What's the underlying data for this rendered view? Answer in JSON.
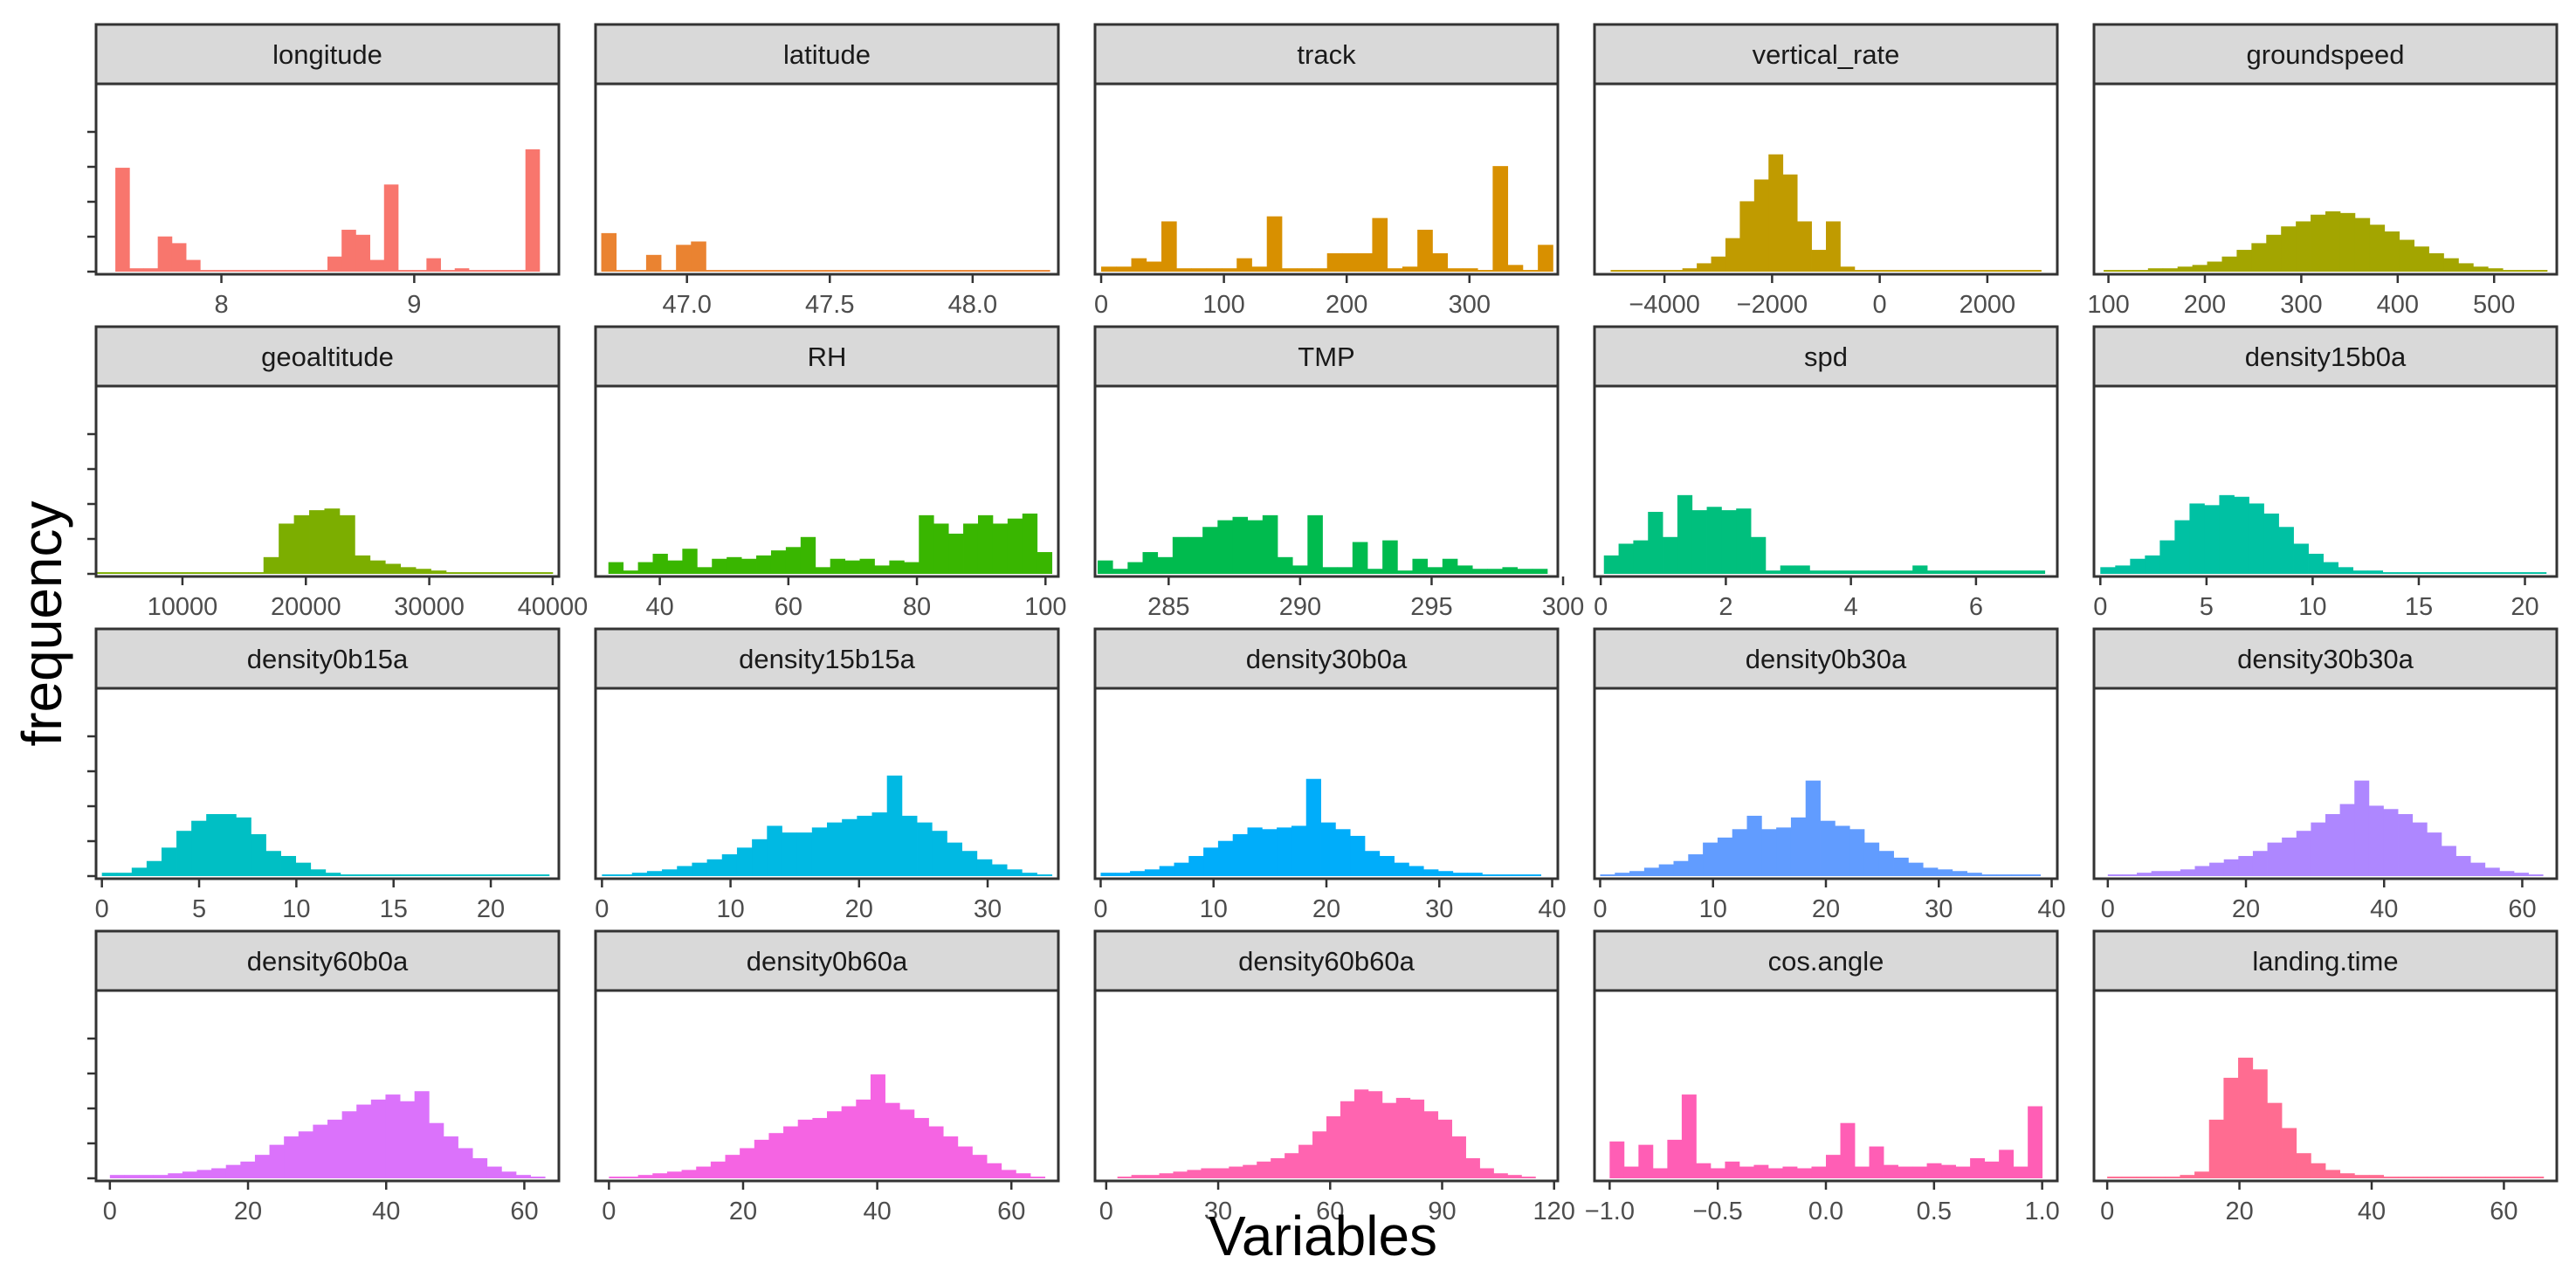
{
  "chart_data": {
    "type": "bar",
    "title": "",
    "xlabel": "Variables",
    "ylabel": "frequency",
    "grid": false,
    "legend": "none",
    "bins": 30,
    "panels": [
      {
        "name": "longitude",
        "color": "#F8766D",
        "xlim": [
          7.35,
          9.75
        ],
        "ticks": [
          8,
          9
        ],
        "tick_labels": [
          "8",
          "9"
        ],
        "bar_range": [
          7.45,
          9.65
        ],
        "values": [
          0.62,
          0.02,
          0.02,
          0.21,
          0.17,
          0.07,
          0.01,
          0.01,
          0.01,
          0.01,
          0.01,
          0.01,
          0.01,
          0.01,
          0.01,
          0.09,
          0.25,
          0.22,
          0.07,
          0.52,
          0.01,
          0.01,
          0.08,
          0.01,
          0.02,
          0.01,
          0.01,
          0.01,
          0.01,
          0.73
        ]
      },
      {
        "name": "latitude",
        "color": "#EA8331",
        "xlim": [
          46.68,
          48.3
        ],
        "ticks": [
          47.0,
          47.5,
          48.0
        ],
        "tick_labels": [
          "47.0",
          "47.5",
          "48.0"
        ],
        "bar_range": [
          46.7,
          48.27
        ],
        "values": [
          0.23,
          0.01,
          0.01,
          0.1,
          0.01,
          0.16,
          0.18,
          0.01,
          0.01,
          0.01,
          0.01,
          0.01,
          0.01,
          0.01,
          0.01,
          0.01,
          0.01,
          0.01,
          0.01,
          0.01,
          0.01,
          0.01,
          0.01,
          0.01,
          0.01,
          0.01,
          0.01,
          0.01,
          0.01,
          0.01
        ]
      },
      {
        "name": "track",
        "color": "#D89000",
        "xlim": [
          -5,
          372
        ],
        "ticks": [
          0,
          100,
          200,
          300
        ],
        "tick_labels": [
          "0",
          "100",
          "200",
          "300"
        ],
        "bar_range": [
          0,
          368
        ],
        "values": [
          0.03,
          0.03,
          0.08,
          0.06,
          0.3,
          0.02,
          0.02,
          0.02,
          0.02,
          0.08,
          0.03,
          0.33,
          0.02,
          0.02,
          0.02,
          0.11,
          0.11,
          0.11,
          0.32,
          0.02,
          0.03,
          0.25,
          0.11,
          0.02,
          0.02,
          0.01,
          0.63,
          0.04,
          0.01,
          0.16
        ]
      },
      {
        "name": "vertical_rate",
        "color": "#C09B00",
        "xlim": [
          -5300,
          3300
        ],
        "ticks": [
          -4000,
          -2000,
          0,
          2000
        ],
        "tick_labels": [
          "−4000",
          "−2000",
          "0",
          "2000"
        ],
        "bar_range": [
          -5000,
          3000
        ],
        "values": [
          0.01,
          0.01,
          0.01,
          0.01,
          0.01,
          0.02,
          0.05,
          0.09,
          0.2,
          0.42,
          0.55,
          0.7,
          0.58,
          0.3,
          0.13,
          0.3,
          0.03,
          0.01,
          0.01,
          0.01,
          0.01,
          0.01,
          0.01,
          0.01,
          0.01,
          0.01,
          0.01,
          0.01,
          0.01,
          0.01
        ]
      },
      {
        "name": "groundspeed",
        "color": "#A3A500",
        "xlim": [
          85,
          565
        ],
        "ticks": [
          100,
          200,
          300,
          400,
          500
        ],
        "tick_labels": [
          "100",
          "200",
          "300",
          "400",
          "500"
        ],
        "bar_range": [
          95,
          555
        ],
        "values": [
          0.01,
          0.01,
          0.01,
          0.02,
          0.02,
          0.03,
          0.04,
          0.06,
          0.09,
          0.13,
          0.17,
          0.22,
          0.27,
          0.3,
          0.34,
          0.36,
          0.35,
          0.32,
          0.28,
          0.24,
          0.19,
          0.15,
          0.11,
          0.08,
          0.05,
          0.03,
          0.02,
          0.01,
          0.01,
          0.01
        ]
      },
      {
        "name": "geoaltitude",
        "color": "#7CAE00",
        "xlim": [
          3000,
          40500
        ],
        "ticks": [
          10000,
          20000,
          30000,
          40000
        ],
        "tick_labels": [
          "10000",
          "20000",
          "30000",
          "40000"
        ],
        "bar_range": [
          3000,
          40000
        ],
        "values": [
          0.01,
          0.01,
          0.01,
          0.01,
          0.01,
          0.01,
          0.01,
          0.01,
          0.01,
          0.01,
          0.01,
          0.1,
          0.3,
          0.35,
          0.38,
          0.39,
          0.35,
          0.11,
          0.08,
          0.06,
          0.04,
          0.03,
          0.02,
          0.01,
          0.01,
          0.01,
          0.01,
          0.01,
          0.01,
          0.01
        ]
      },
      {
        "name": "RH",
        "color": "#39B600",
        "xlim": [
          30,
          102
        ],
        "ticks": [
          40,
          60,
          80,
          100
        ],
        "tick_labels": [
          "40",
          "60",
          "80",
          "100"
        ],
        "bar_range": [
          32,
          101
        ],
        "values": [
          0.07,
          0.02,
          0.07,
          0.12,
          0.08,
          0.15,
          0.04,
          0.09,
          0.1,
          0.09,
          0.11,
          0.14,
          0.16,
          0.22,
          0.04,
          0.09,
          0.08,
          0.09,
          0.05,
          0.08,
          0.07,
          0.35,
          0.3,
          0.24,
          0.3,
          0.35,
          0.3,
          0.33,
          0.36,
          0.13
        ]
      },
      {
        "name": "TMP",
        "color": "#00BB4E",
        "xlim": [
          282.2,
          299.8
        ],
        "ticks": [
          285,
          290,
          295,
          300
        ],
        "tick_labels": [
          "285",
          "290",
          "295",
          "300"
        ],
        "bar_range": [
          282.3,
          299.4
        ],
        "values": [
          0.08,
          0.03,
          0.07,
          0.13,
          0.1,
          0.22,
          0.22,
          0.28,
          0.32,
          0.34,
          0.32,
          0.35,
          0.1,
          0.05,
          0.35,
          0.04,
          0.04,
          0.19,
          0.03,
          0.2,
          0.02,
          0.09,
          0.04,
          0.09,
          0.05,
          0.03,
          0.03,
          0.04,
          0.03,
          0.03
        ]
      },
      {
        "name": "spd",
        "color": "#00BF7D",
        "xlim": [
          -0.1,
          7.3
        ],
        "ticks": [
          0,
          2,
          4,
          6
        ],
        "tick_labels": [
          "0",
          "2",
          "4",
          "6"
        ],
        "bar_range": [
          0.05,
          7.1
        ],
        "values": [
          0.11,
          0.18,
          0.2,
          0.37,
          0.22,
          0.47,
          0.38,
          0.4,
          0.38,
          0.39,
          0.22,
          0.02,
          0.05,
          0.05,
          0.02,
          0.02,
          0.02,
          0.02,
          0.02,
          0.02,
          0.02,
          0.05,
          0.02,
          0.02,
          0.02,
          0.02,
          0.02,
          0.02,
          0.02,
          0.02
        ]
      },
      {
        "name": "density15b0a",
        "color": "#00C1A3",
        "xlim": [
          -0.3,
          21.5
        ],
        "ticks": [
          0,
          5,
          10,
          15,
          20
        ],
        "tick_labels": [
          "0",
          "5",
          "10",
          "15",
          "20"
        ],
        "bar_range": [
          0,
          21
        ],
        "values": [
          0.04,
          0.05,
          0.09,
          0.11,
          0.2,
          0.32,
          0.42,
          0.41,
          0.47,
          0.46,
          0.42,
          0.36,
          0.28,
          0.18,
          0.12,
          0.07,
          0.04,
          0.02,
          0.02,
          0.01,
          0.01,
          0.01,
          0.01,
          0.01,
          0.01,
          0.01,
          0.01,
          0.01,
          0.01,
          0.01
        ]
      },
      {
        "name": "density0b15a",
        "color": "#00BFC4",
        "xlim": [
          -0.3,
          23.5
        ],
        "ticks": [
          0,
          5,
          10,
          15,
          20
        ],
        "tick_labels": [
          "0",
          "5",
          "10",
          "15",
          "20"
        ],
        "bar_range": [
          0,
          23
        ],
        "values": [
          0.02,
          0.02,
          0.05,
          0.09,
          0.17,
          0.27,
          0.33,
          0.37,
          0.37,
          0.35,
          0.25,
          0.15,
          0.12,
          0.08,
          0.04,
          0.02,
          0.01,
          0.01,
          0.01,
          0.01,
          0.01,
          0.01,
          0.01,
          0.01,
          0.01,
          0.01,
          0.01,
          0.01,
          0.01,
          0.01
        ]
      },
      {
        "name": "density15b15a",
        "color": "#00B9E3",
        "xlim": [
          -0.5,
          35.5
        ],
        "ticks": [
          0,
          10,
          20,
          30
        ],
        "tick_labels": [
          "0",
          "10",
          "20",
          "30"
        ],
        "bar_range": [
          0,
          35
        ],
        "values": [
          0.01,
          0.01,
          0.02,
          0.03,
          0.04,
          0.06,
          0.08,
          0.1,
          0.13,
          0.17,
          0.22,
          0.3,
          0.26,
          0.26,
          0.29,
          0.32,
          0.34,
          0.36,
          0.38,
          0.6,
          0.36,
          0.32,
          0.27,
          0.2,
          0.15,
          0.1,
          0.07,
          0.04,
          0.02,
          0.01
        ]
      },
      {
        "name": "density30b0a",
        "color": "#00ADFA",
        "xlim": [
          -0.5,
          40.5
        ],
        "ticks": [
          0,
          10,
          20,
          30,
          40
        ],
        "tick_labels": [
          "0",
          "10",
          "20",
          "30",
          "40"
        ],
        "bar_range": [
          0,
          39
        ],
        "values": [
          0.02,
          0.02,
          0.03,
          0.04,
          0.06,
          0.08,
          0.12,
          0.17,
          0.21,
          0.25,
          0.29,
          0.28,
          0.29,
          0.3,
          0.58,
          0.32,
          0.28,
          0.24,
          0.15,
          0.12,
          0.08,
          0.06,
          0.04,
          0.03,
          0.02,
          0.02,
          0.01,
          0.01,
          0.01,
          0.01
        ]
      },
      {
        "name": "density0b30a",
        "color": "#619CFF",
        "xlim": [
          -0.5,
          40.5
        ],
        "ticks": [
          0,
          10,
          20,
          30,
          40
        ],
        "tick_labels": [
          "0",
          "10",
          "20",
          "30",
          "40"
        ],
        "bar_range": [
          0,
          39
        ],
        "values": [
          0.01,
          0.02,
          0.03,
          0.05,
          0.07,
          0.09,
          0.13,
          0.2,
          0.23,
          0.28,
          0.36,
          0.28,
          0.29,
          0.35,
          0.57,
          0.33,
          0.3,
          0.28,
          0.2,
          0.15,
          0.11,
          0.08,
          0.05,
          0.04,
          0.03,
          0.02,
          0.01,
          0.01,
          0.01,
          0.01
        ]
      },
      {
        "name": "density30b30a",
        "color": "#AE87FF",
        "xlim": [
          -2,
          65
        ],
        "ticks": [
          0,
          20,
          40,
          60
        ],
        "tick_labels": [
          "0",
          "20",
          "40",
          "60"
        ],
        "bar_range": [
          0,
          63
        ],
        "values": [
          0.01,
          0.01,
          0.02,
          0.03,
          0.03,
          0.04,
          0.06,
          0.08,
          0.1,
          0.12,
          0.15,
          0.2,
          0.23,
          0.27,
          0.32,
          0.37,
          0.43,
          0.57,
          0.42,
          0.4,
          0.37,
          0.32,
          0.26,
          0.18,
          0.12,
          0.08,
          0.05,
          0.03,
          0.02,
          0.01
        ]
      },
      {
        "name": "density60b0a",
        "color": "#DB72FB",
        "xlim": [
          -2,
          65
        ],
        "ticks": [
          0,
          20,
          40,
          60
        ],
        "tick_labels": [
          "0",
          "20",
          "40",
          "60"
        ],
        "bar_range": [
          0,
          63
        ],
        "values": [
          0.02,
          0.02,
          0.02,
          0.02,
          0.03,
          0.04,
          0.05,
          0.06,
          0.08,
          0.1,
          0.14,
          0.2,
          0.25,
          0.28,
          0.32,
          0.35,
          0.4,
          0.44,
          0.47,
          0.5,
          0.46,
          0.52,
          0.33,
          0.25,
          0.18,
          0.12,
          0.07,
          0.04,
          0.02,
          0.01
        ]
      },
      {
        "name": "density0b60a",
        "color": "#F564E3",
        "xlim": [
          -2,
          67
        ],
        "ticks": [
          0,
          20,
          40,
          60
        ],
        "tick_labels": [
          "0",
          "20",
          "40",
          "60"
        ],
        "bar_range": [
          0,
          65
        ],
        "values": [
          0.01,
          0.01,
          0.02,
          0.03,
          0.04,
          0.05,
          0.07,
          0.1,
          0.14,
          0.18,
          0.23,
          0.27,
          0.31,
          0.35,
          0.36,
          0.4,
          0.43,
          0.47,
          0.62,
          0.45,
          0.41,
          0.36,
          0.31,
          0.25,
          0.19,
          0.14,
          0.09,
          0.05,
          0.03,
          0.01
        ]
      },
      {
        "name": "density60b60a",
        "color": "#FF64B0",
        "xlim": [
          -3,
          121
        ],
        "ticks": [
          0,
          30,
          60,
          90,
          120
        ],
        "tick_labels": [
          "0",
          "30",
          "60",
          "90",
          "120"
        ],
        "bar_range": [
          3,
          115
        ],
        "values": [
          0.01,
          0.02,
          0.02,
          0.03,
          0.04,
          0.05,
          0.06,
          0.06,
          0.07,
          0.08,
          0.1,
          0.12,
          0.15,
          0.2,
          0.28,
          0.37,
          0.46,
          0.53,
          0.52,
          0.45,
          0.48,
          0.47,
          0.4,
          0.35,
          0.25,
          0.12,
          0.06,
          0.03,
          0.02,
          0.01
        ]
      },
      {
        "name": "cos.angle",
        "color": "#FF5EB5",
        "xlim": [
          -1.07,
          1.07
        ],
        "ticks": [
          -1.0,
          -0.5,
          0.0,
          0.5,
          1.0
        ],
        "tick_labels": [
          "−1.0",
          "−0.5",
          "0.0",
          "0.5",
          "1.0"
        ],
        "bar_range": [
          -1,
          1
        ],
        "values": [
          0.22,
          0.07,
          0.2,
          0.06,
          0.23,
          0.5,
          0.09,
          0.06,
          0.1,
          0.07,
          0.08,
          0.06,
          0.07,
          0.06,
          0.07,
          0.14,
          0.33,
          0.07,
          0.19,
          0.08,
          0.07,
          0.07,
          0.09,
          0.08,
          0.07,
          0.12,
          0.1,
          0.17,
          0.07,
          0.43
        ]
      },
      {
        "name": "landing.time",
        "color": "#FF6C91",
        "xlim": [
          -2,
          68
        ],
        "ticks": [
          0,
          20,
          40,
          60
        ],
        "tick_labels": [
          "0",
          "20",
          "40",
          "60"
        ],
        "bar_range": [
          0,
          66
        ],
        "values": [
          0.01,
          0.01,
          0.01,
          0.01,
          0.01,
          0.02,
          0.04,
          0.35,
          0.6,
          0.72,
          0.65,
          0.45,
          0.3,
          0.15,
          0.09,
          0.05,
          0.03,
          0.02,
          0.02,
          0.01,
          0.01,
          0.01,
          0.01,
          0.01,
          0.01,
          0.01,
          0.01,
          0.01,
          0.01,
          0.01
        ]
      }
    ]
  }
}
